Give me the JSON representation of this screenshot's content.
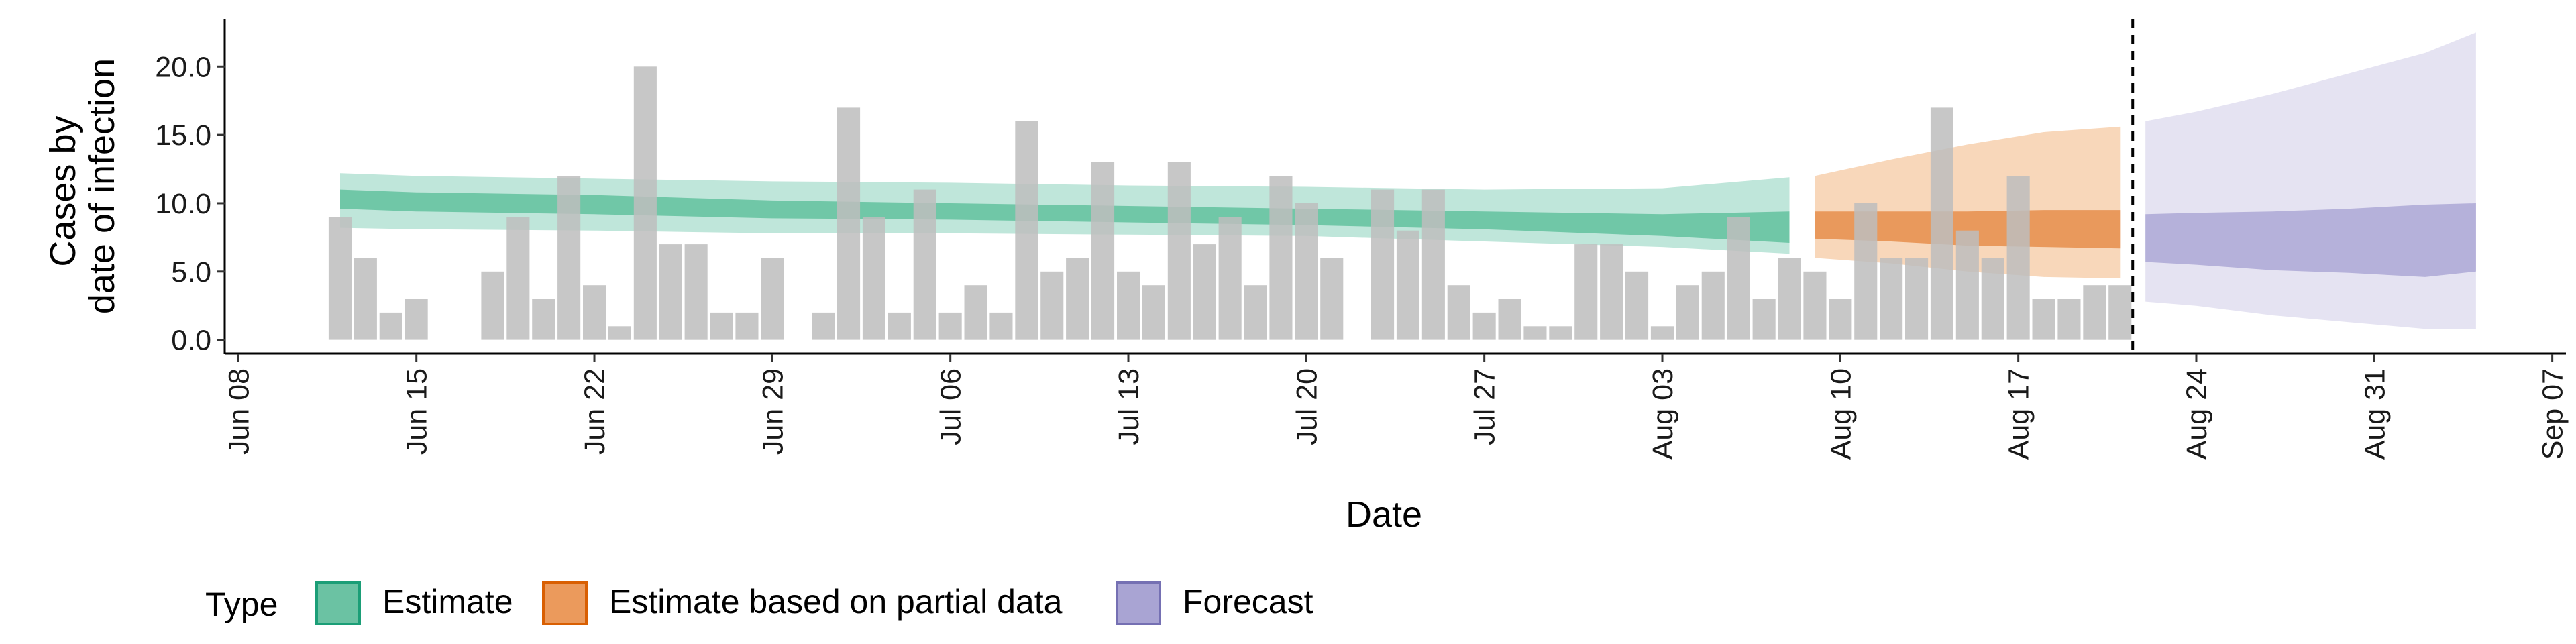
{
  "chart_data": {
    "type": "bar",
    "xlabel": "Date",
    "ylabel_lines": [
      "Cases by",
      "date of infection"
    ],
    "ylim": [
      -1,
      23.5
    ],
    "y_ticks": [
      0,
      5,
      10,
      15,
      20
    ],
    "y_tick_labels": [
      "0.0",
      "5.0",
      "10.0",
      "15.0",
      "20.0"
    ],
    "x_range": [
      "2020-06-08",
      "2020-09-07"
    ],
    "x_ticks": [
      {
        "date": "2020-06-08",
        "label": "Jun 08"
      },
      {
        "date": "2020-06-15",
        "label": "Jun 15"
      },
      {
        "date": "2020-06-22",
        "label": "Jun 22"
      },
      {
        "date": "2020-06-29",
        "label": "Jun 29"
      },
      {
        "date": "2020-07-06",
        "label": "Jul 06"
      },
      {
        "date": "2020-07-13",
        "label": "Jul 13"
      },
      {
        "date": "2020-07-20",
        "label": "Jul 20"
      },
      {
        "date": "2020-07-27",
        "label": "Jul 27"
      },
      {
        "date": "2020-08-03",
        "label": "Aug 03"
      },
      {
        "date": "2020-08-10",
        "label": "Aug 10"
      },
      {
        "date": "2020-08-17",
        "label": "Aug 17"
      },
      {
        "date": "2020-08-24",
        "label": "Aug 24"
      },
      {
        "date": "2020-08-31",
        "label": "Aug 31"
      },
      {
        "date": "2020-09-07",
        "label": "Sep 07"
      }
    ],
    "cases": {
      "start_date": "2020-06-12",
      "values": [
        9,
        6,
        2,
        3,
        0,
        0,
        5,
        9,
        3,
        12,
        4,
        1,
        20,
        7,
        7,
        2,
        2,
        6,
        0,
        2,
        17,
        9,
        2,
        11,
        2,
        4,
        2,
        16,
        5,
        6,
        13,
        5,
        4,
        13,
        7,
        9,
        4,
        12,
        10,
        6,
        0,
        11,
        8,
        11,
        4,
        2,
        3,
        1,
        1,
        7,
        7,
        5,
        1,
        4,
        5,
        9,
        3,
        6,
        5,
        3,
        10,
        6,
        6,
        17,
        8,
        6,
        12,
        3,
        3,
        4,
        4
      ],
      "color": "#bdbdbd"
    },
    "dates_note": "daily",
    "series": [
      {
        "name": "Estimate",
        "dates": [
          "2020-06-12",
          "2020-06-15",
          "2020-06-22",
          "2020-06-29",
          "2020-07-06",
          "2020-07-13",
          "2020-07-20",
          "2020-07-27",
          "2020-08-03",
          "2020-08-08"
        ],
        "outer_lower": [
          8.2,
          8.1,
          8.0,
          7.8,
          7.8,
          7.7,
          7.6,
          7.2,
          6.8,
          6.3
        ],
        "outer_upper": [
          12.2,
          12.0,
          11.8,
          11.6,
          11.5,
          11.3,
          11.2,
          11.0,
          11.1,
          11.9
        ],
        "inner_lower": [
          9.6,
          9.4,
          9.2,
          8.9,
          8.8,
          8.6,
          8.4,
          8.1,
          7.6,
          7.1
        ],
        "inner_upper": [
          11.0,
          10.8,
          10.6,
          10.2,
          10.0,
          9.8,
          9.6,
          9.4,
          9.2,
          9.4
        ]
      },
      {
        "name": "Estimate based on partial data",
        "dates": [
          "2020-08-09",
          "2020-08-12",
          "2020-08-15",
          "2020-08-18",
          "2020-08-21"
        ],
        "outer_lower": [
          6.0,
          5.6,
          5.0,
          4.6,
          4.5
        ],
        "outer_upper": [
          12.0,
          13.2,
          14.3,
          15.2,
          15.6
        ],
        "inner_lower": [
          7.4,
          7.2,
          6.9,
          6.8,
          6.7
        ],
        "inner_upper": [
          9.4,
          9.4,
          9.4,
          9.5,
          9.5
        ]
      },
      {
        "name": "Forecast",
        "dates": [
          "2020-08-22",
          "2020-08-24",
          "2020-08-27",
          "2020-08-30",
          "2020-09-02",
          "2020-09-04"
        ],
        "outer_lower": [
          2.8,
          2.5,
          1.8,
          1.3,
          0.8,
          0.8
        ],
        "outer_upper": [
          16.0,
          16.7,
          18.0,
          19.5,
          21.0,
          22.5
        ],
        "inner_lower": [
          5.7,
          5.5,
          5.1,
          4.9,
          4.6,
          5.0
        ],
        "inner_upper": [
          9.2,
          9.3,
          9.4,
          9.6,
          9.9,
          10.0
        ]
      }
    ],
    "vline_date": "2020-08-21",
    "colors": {
      "Estimate": {
        "outer": "#a9ddcd",
        "inner": "#5cbf9a",
        "swatch_fill": "#6bc2a3",
        "swatch_border": "#1b9e77"
      },
      "Estimate based on partial data": {
        "outer": "#f5c9a3",
        "inner": "#e58a45",
        "swatch_fill": "#eb9a5c",
        "swatch_border": "#d95f02"
      },
      "Forecast": {
        "outer": "#dcdaee",
        "inner": "#a9a4d3",
        "swatch_fill": "#a9a4d3",
        "swatch_border": "#7570b3"
      }
    },
    "legend": {
      "title": "Type",
      "position": "bottom",
      "items": [
        "Estimate",
        "Estimate based on partial data",
        "Forecast"
      ]
    },
    "grid": false
  }
}
